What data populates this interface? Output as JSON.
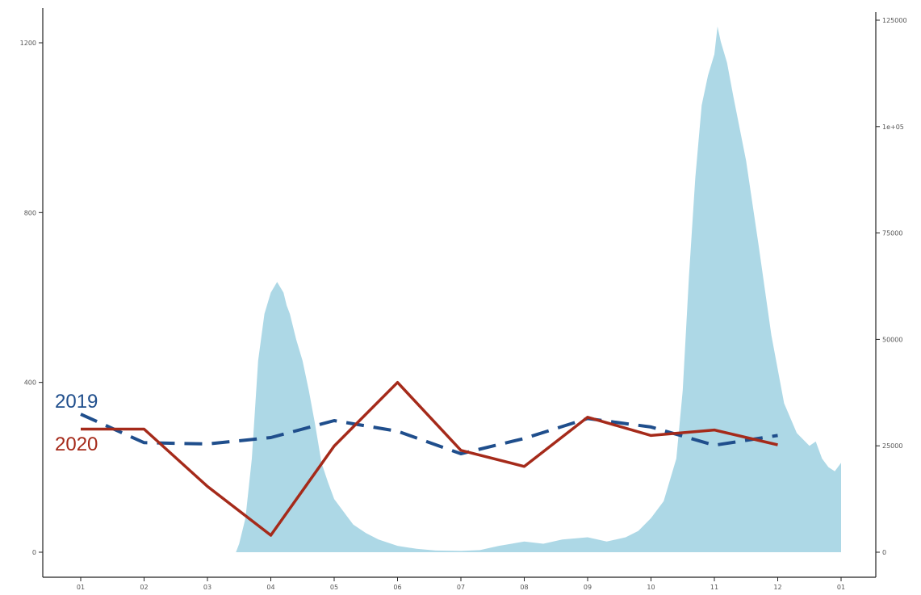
{
  "chart_data": {
    "type": "line",
    "title": "",
    "xlabel": "",
    "ylabel": "",
    "y2label": "",
    "grid": false,
    "legend": "inline",
    "categories": [
      "01",
      "02",
      "03",
      "04",
      "05",
      "06",
      "07",
      "08",
      "09",
      "10",
      "11",
      "12",
      "01"
    ],
    "left_axis": {
      "ylim": [
        0,
        1250
      ],
      "ticks": [
        0,
        400,
        800,
        1200
      ],
      "tick_labels": [
        "0",
        "400",
        "800",
        "1200"
      ]
    },
    "right_axis": {
      "ylim": [
        0,
        125000
      ],
      "ticks": [
        0,
        25000,
        50000,
        75000,
        100000,
        125000
      ],
      "tick_labels": [
        "0",
        "25000",
        "50000",
        "75000",
        "1e+05",
        "125000"
      ]
    },
    "series": [
      {
        "name": "2019",
        "type": "line",
        "style": "dashed",
        "color": "#1f4e8c",
        "axis": "left",
        "x": [
          1,
          2,
          3,
          4,
          5,
          6,
          7,
          8,
          9,
          10,
          11,
          12
        ],
        "values": [
          325,
          258,
          255,
          270,
          310,
          285,
          232,
          268,
          315,
          295,
          252,
          275
        ]
      },
      {
        "name": "2020",
        "type": "line",
        "style": "solid",
        "color": "#a52a1a",
        "axis": "left",
        "x": [
          1,
          2,
          3,
          4,
          5,
          6,
          7,
          8,
          9,
          10,
          11,
          12
        ],
        "values": [
          290,
          290,
          155,
          40,
          250,
          400,
          240,
          202,
          318,
          275,
          288,
          253
        ]
      },
      {
        "name": "",
        "type": "area",
        "color": "#add8e6",
        "axis": "right",
        "x": [
          3.45,
          3.5,
          3.6,
          3.7,
          3.8,
          3.9,
          4.0,
          4.1,
          4.2,
          4.25,
          4.3,
          4.4,
          4.5,
          4.6,
          4.7,
          4.8,
          4.9,
          5.0,
          5.1,
          5.2,
          5.3,
          5.5,
          5.7,
          6.0,
          6.3,
          6.6,
          7.0,
          7.3,
          7.6,
          8.0,
          8.3,
          8.6,
          9.0,
          9.3,
          9.6,
          9.8,
          10.0,
          10.2,
          10.4,
          10.5,
          10.6,
          10.7,
          10.8,
          10.9,
          11.0,
          11.05,
          11.1,
          11.2,
          11.3,
          11.5,
          11.7,
          11.9,
          12.1,
          12.3,
          12.5,
          12.6,
          12.7,
          12.8,
          12.9,
          13.0
        ],
        "values": [
          0,
          2000,
          8000,
          22000,
          45000,
          56000,
          61000,
          63500,
          61000,
          58000,
          56000,
          50000,
          45000,
          38000,
          30000,
          21000,
          16500,
          12500,
          10500,
          8500,
          6500,
          4500,
          3000,
          1500,
          800,
          400,
          300,
          500,
          1500,
          2500,
          2000,
          3000,
          3500,
          2500,
          3500,
          5000,
          8000,
          12000,
          22000,
          38000,
          65000,
          88000,
          105000,
          112000,
          117000,
          123500,
          120000,
          115000,
          107000,
          92000,
          72000,
          51000,
          35000,
          28000,
          25000,
          26000,
          22000,
          20000,
          19000,
          21000
        ]
      }
    ]
  }
}
